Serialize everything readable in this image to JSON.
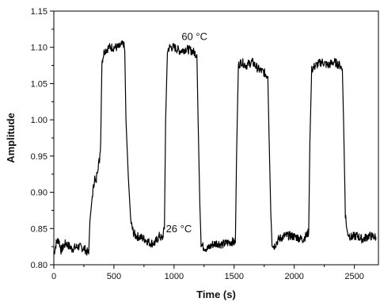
{
  "chart_data": {
    "type": "line",
    "title": "",
    "xlabel": "Time (s)",
    "ylabel": "Amplitude",
    "xlim": [
      0,
      2700
    ],
    "ylim": [
      0.8,
      1.15
    ],
    "xticks": [
      0,
      500,
      1000,
      1500,
      2000,
      2500
    ],
    "xtick_labels": [
      "0",
      "500",
      "1000",
      "1500",
      "2000",
      "2500"
    ],
    "yticks": [
      0.8,
      0.85,
      0.9,
      0.95,
      1.0,
      1.05,
      1.1,
      1.15
    ],
    "ytick_labels": [
      "0.80",
      "0.85",
      "0.90",
      "0.95",
      "1.00",
      "1.05",
      "1.10",
      "1.15"
    ],
    "grid": false,
    "line_color": "#000000",
    "annotations": [
      {
        "text": "60 °C",
        "x": 1170,
        "y": 1.11
      },
      {
        "text": "26 °C",
        "x": 1040,
        "y": 0.845
      }
    ],
    "series": [
      {
        "points": [
          [
            0,
            0.815
          ],
          [
            20,
            0.83
          ],
          [
            40,
            0.835
          ],
          [
            60,
            0.82
          ],
          [
            80,
            0.825
          ],
          [
            100,
            0.83
          ],
          [
            150,
            0.822
          ],
          [
            200,
            0.825
          ],
          [
            250,
            0.823
          ],
          [
            290,
            0.815
          ],
          [
            300,
            0.86
          ],
          [
            320,
            0.895
          ],
          [
            340,
            0.92
          ],
          [
            350,
            0.91
          ],
          [
            360,
            0.93
          ],
          [
            380,
            0.945
          ],
          [
            390,
            0.97
          ],
          [
            400,
            1.08
          ],
          [
            420,
            1.095
          ],
          [
            460,
            1.1
          ],
          [
            500,
            1.1
          ],
          [
            540,
            1.1
          ],
          [
            580,
            1.105
          ],
          [
            590,
            1.095
          ],
          [
            600,
            1.0
          ],
          [
            620,
            0.92
          ],
          [
            640,
            0.86
          ],
          [
            660,
            0.845
          ],
          [
            680,
            0.84
          ],
          [
            720,
            0.838
          ],
          [
            760,
            0.835
          ],
          [
            800,
            0.83
          ],
          [
            840,
            0.83
          ],
          [
            860,
            0.835
          ],
          [
            880,
            0.84
          ],
          [
            900,
            0.835
          ],
          [
            920,
            0.85
          ],
          [
            930,
            1.0
          ],
          [
            945,
            1.095
          ],
          [
            960,
            1.1
          ],
          [
            1000,
            1.1
          ],
          [
            1050,
            1.095
          ],
          [
            1100,
            1.098
          ],
          [
            1150,
            1.095
          ],
          [
            1190,
            1.09
          ],
          [
            1200,
            1.0
          ],
          [
            1215,
            0.88
          ],
          [
            1225,
            0.83
          ],
          [
            1240,
            0.825
          ],
          [
            1280,
            0.822
          ],
          [
            1320,
            0.828
          ],
          [
            1360,
            0.83
          ],
          [
            1400,
            0.828
          ],
          [
            1440,
            0.83
          ],
          [
            1480,
            0.832
          ],
          [
            1510,
            0.83
          ],
          [
            1520,
            0.95
          ],
          [
            1535,
            1.075
          ],
          [
            1560,
            1.08
          ],
          [
            1600,
            1.075
          ],
          [
            1650,
            1.08
          ],
          [
            1700,
            1.07
          ],
          [
            1750,
            1.065
          ],
          [
            1780,
            1.06
          ],
          [
            1790,
            0.98
          ],
          [
            1805,
            0.87
          ],
          [
            1815,
            0.83
          ],
          [
            1830,
            0.825
          ],
          [
            1870,
            0.835
          ],
          [
            1920,
            0.84
          ],
          [
            1970,
            0.84
          ],
          [
            2020,
            0.838
          ],
          [
            2070,
            0.835
          ],
          [
            2100,
            0.84
          ],
          [
            2120,
            0.845
          ],
          [
            2130,
            0.97
          ],
          [
            2145,
            1.07
          ],
          [
            2180,
            1.075
          ],
          [
            2230,
            1.08
          ],
          [
            2280,
            1.075
          ],
          [
            2330,
            1.08
          ],
          [
            2380,
            1.075
          ],
          [
            2400,
            1.07
          ],
          [
            2410,
            1.0
          ],
          [
            2425,
            0.87
          ],
          [
            2440,
            0.845
          ],
          [
            2470,
            0.838
          ],
          [
            2520,
            0.84
          ],
          [
            2570,
            0.835
          ],
          [
            2620,
            0.84
          ],
          [
            2680,
            0.838
          ]
        ]
      }
    ]
  }
}
